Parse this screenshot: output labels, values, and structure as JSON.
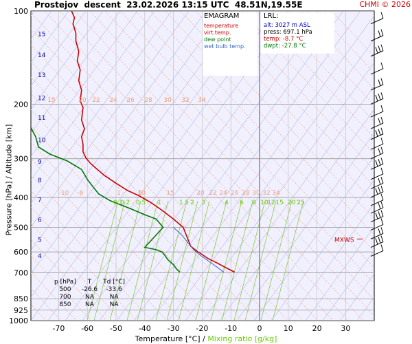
{
  "header": {
    "station": "Prostejov",
    "kind": "descent",
    "datetime": "23.02.2026 13:15 UTC",
    "coords": "48.51N,19.55E",
    "credit": "CHMI © 2026"
  },
  "legend": {
    "title": "EMAGRAM",
    "items": [
      {
        "label": "temperature",
        "color": "#cc0000"
      },
      {
        "label": "virt.temp.",
        "color": "#cc0000"
      },
      {
        "label": "dew point",
        "color": "#007700"
      },
      {
        "label": "wet bulb temp.",
        "color": "#3366cc"
      }
    ]
  },
  "lrl": {
    "title": "LRL:",
    "alt": "alt: 3027 m ASL",
    "press": "press: 697.1 hPa",
    "temp": "temp: -8.7 °C",
    "dwpt": "dwpt: -27.8 °C"
  },
  "table": {
    "headers": [
      "p [hPa]",
      "T",
      "Td [°C]"
    ],
    "rows": [
      [
        "500",
        "-26.6",
        "-33.6"
      ],
      [
        "700",
        "NA",
        "NA"
      ],
      [
        "850",
        "NA",
        "NA"
      ]
    ]
  },
  "axes": {
    "xlabel_main": "Temperature [°C]",
    "xlabel_sep": "/",
    "xlabel_mix": "Mixing ratio [g/kg]",
    "ylabel": "Pressure [hPa]  /  Altitude [km]"
  },
  "mxws_label": "MXWS",
  "chart_data": {
    "type": "line",
    "diagram": "emagram",
    "xlim": [
      -80,
      40
    ],
    "ylim": [
      1000,
      100
    ],
    "y_scale": "log",
    "x_ticks": [
      -70,
      -60,
      -50,
      -40,
      -30,
      -20,
      -10,
      0,
      10,
      20,
      30
    ],
    "p_ticks": [
      100,
      200,
      300,
      400,
      500,
      600,
      700,
      850,
      925,
      1000
    ],
    "altitude_km": [
      {
        "km": 4,
        "p": 615
      },
      {
        "km": 5,
        "p": 545
      },
      {
        "km": 6,
        "p": 470
      },
      {
        "km": 7,
        "p": 405
      },
      {
        "km": 8,
        "p": 350
      },
      {
        "km": 9,
        "p": 305
      },
      {
        "km": 10,
        "p": 260
      },
      {
        "km": 11,
        "p": 220
      },
      {
        "km": 12,
        "p": 190
      },
      {
        "km": 13,
        "p": 160
      },
      {
        "km": 14,
        "p": 138
      },
      {
        "km": 15,
        "p": 118
      }
    ],
    "mixing_ratio_labels": [
      "0.1",
      "0.2",
      "0.5",
      "1",
      "1.5",
      "2",
      "3",
      "4",
      "6",
      "8",
      "10",
      "12",
      "15",
      "20",
      "25"
    ],
    "dry_adiabat_labels_upper": [
      "15",
      "20",
      "22",
      "24",
      "26",
      "28",
      "30",
      "32",
      "34"
    ],
    "dry_adiabat_labels_lower": [
      "-10",
      "-6",
      "1",
      "5",
      "10",
      "15",
      "20",
      "22",
      "24",
      "26",
      "28",
      "30",
      "32",
      "34"
    ],
    "series": [
      {
        "name": "temperature",
        "color": "#cc0000",
        "points": [
          [
            -8.7,
            697
          ],
          [
            -11,
            680
          ],
          [
            -13,
            665
          ],
          [
            -15,
            650
          ],
          [
            -18,
            630
          ],
          [
            -20,
            612
          ],
          [
            -22,
            595
          ],
          [
            -24,
            575
          ],
          [
            -26.6,
            500
          ],
          [
            -30,
            470
          ],
          [
            -34,
            440
          ],
          [
            -38,
            415
          ],
          [
            -42,
            395
          ],
          [
            -46,
            380
          ],
          [
            -50,
            360
          ],
          [
            -54,
            340
          ],
          [
            -57,
            322
          ],
          [
            -59,
            310
          ],
          [
            -60.5,
            298
          ],
          [
            -61.5,
            285
          ],
          [
            -61.5,
            270
          ],
          [
            -62,
            255
          ],
          [
            -61,
            240
          ],
          [
            -62,
            225
          ],
          [
            -61.5,
            205
          ],
          [
            -62.5,
            195
          ],
          [
            -62,
            180
          ],
          [
            -63,
            168
          ],
          [
            -62.5,
            155
          ],
          [
            -63.5,
            145
          ],
          [
            -63,
            135
          ],
          [
            -64,
            125
          ],
          [
            -64,
            118
          ],
          [
            -65,
            110
          ],
          [
            -64.5,
            105
          ],
          [
            -65.5,
            100
          ]
        ]
      },
      {
        "name": "dew point",
        "color": "#007700",
        "points": [
          [
            -27.8,
            697
          ],
          [
            -29,
            680
          ],
          [
            -30,
            660
          ],
          [
            -32,
            635
          ],
          [
            -33,
            615
          ],
          [
            -34,
            600
          ],
          [
            -36,
            590
          ],
          [
            -40,
            580
          ],
          [
            -33.6,
            500
          ],
          [
            -36,
            470
          ],
          [
            -40,
            455
          ],
          [
            -45,
            435
          ],
          [
            -52,
            410
          ],
          [
            -56,
            390
          ],
          [
            -58,
            370
          ],
          [
            -60,
            350
          ],
          [
            -62,
            325
          ],
          [
            -67,
            305
          ],
          [
            -73,
            290
          ],
          [
            -77,
            275
          ],
          [
            -78,
            255
          ],
          [
            -80,
            235
          ]
        ]
      },
      {
        "name": "wet bulb temp.",
        "color": "#3366cc",
        "points": [
          [
            -12.5,
            697
          ],
          [
            -15,
            670
          ],
          [
            -18,
            640
          ],
          [
            -21,
            612
          ],
          [
            -23,
            590
          ],
          [
            -25,
            560
          ],
          [
            -27,
            530
          ],
          [
            -30,
            500
          ]
        ]
      }
    ],
    "wind_barbs_p": [
      110,
      125,
      140,
      160,
      180,
      200,
      220,
      240,
      260,
      280,
      300,
      325,
      350,
      375,
      400,
      425,
      450,
      480,
      510,
      545,
      580,
      620
    ],
    "mxws_p": 545
  }
}
